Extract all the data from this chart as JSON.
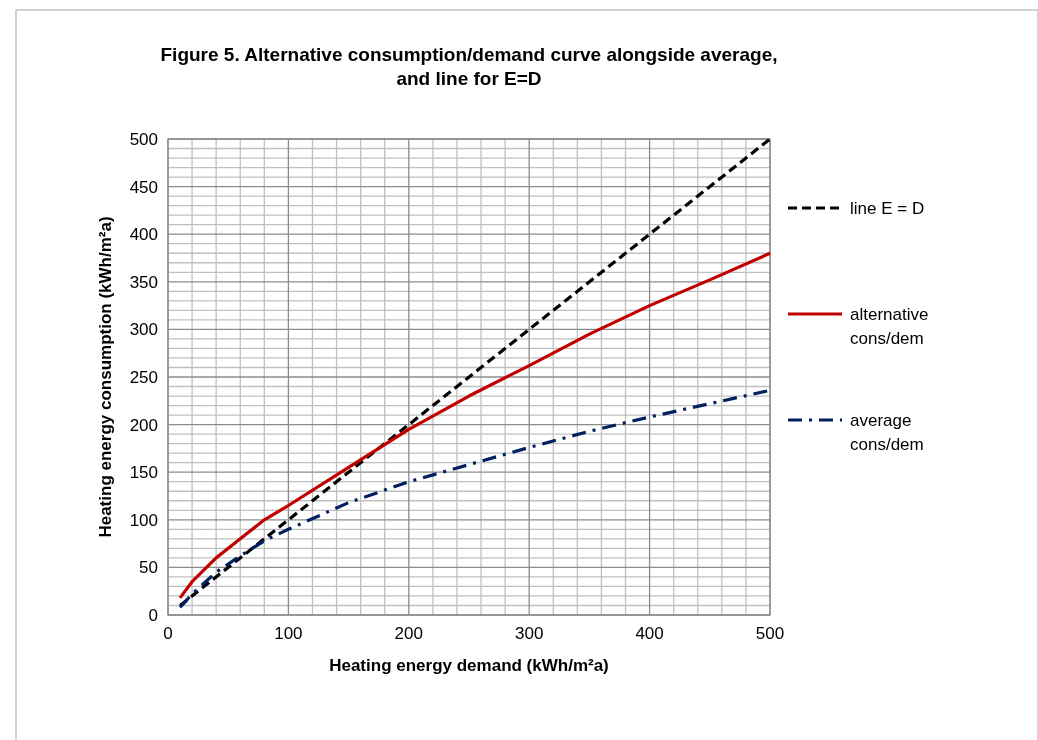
{
  "chart_data": {
    "type": "line",
    "title": "Figure 5. Alternative consumption/demand curve alongside average,\nand line for E=D",
    "xlabel": "Heating energy demand (kWh/m²a)",
    "ylabel": "Heating energy consumption (kWh/m²a)",
    "xlim": [
      0,
      500
    ],
    "ylim": [
      0,
      500
    ],
    "xticks": [
      0,
      100,
      200,
      300,
      400,
      500
    ],
    "yticks": [
      0,
      50,
      100,
      150,
      200,
      250,
      300,
      350,
      400,
      450,
      500
    ],
    "grid": true,
    "legend": "right",
    "marker": "none",
    "series": [
      {
        "name": "line E = D",
        "color": "#000000",
        "line_style": "dashed",
        "x": [
          10,
          500
        ],
        "values": [
          10,
          500
        ]
      },
      {
        "name": "alternative\ncons/dem",
        "color": "#c00000",
        "line_style": "solid",
        "x": [
          10,
          20,
          40,
          60,
          80,
          100,
          150,
          200,
          250,
          300,
          350,
          400,
          450,
          500
        ],
        "values": [
          18,
          35,
          60,
          80,
          100,
          115,
          155,
          195,
          230,
          262,
          295,
          325,
          352,
          380
        ]
      },
      {
        "name": "average\ncons/dem",
        "color": "#002060",
        "line_style": "dashdot",
        "x": [
          10,
          20,
          40,
          60,
          80,
          100,
          150,
          200,
          250,
          300,
          350,
          400,
          450,
          500
        ],
        "values": [
          8,
          22,
          45,
          62,
          78,
          90,
          118,
          140,
          158,
          176,
          193,
          208,
          222,
          236
        ]
      }
    ]
  }
}
